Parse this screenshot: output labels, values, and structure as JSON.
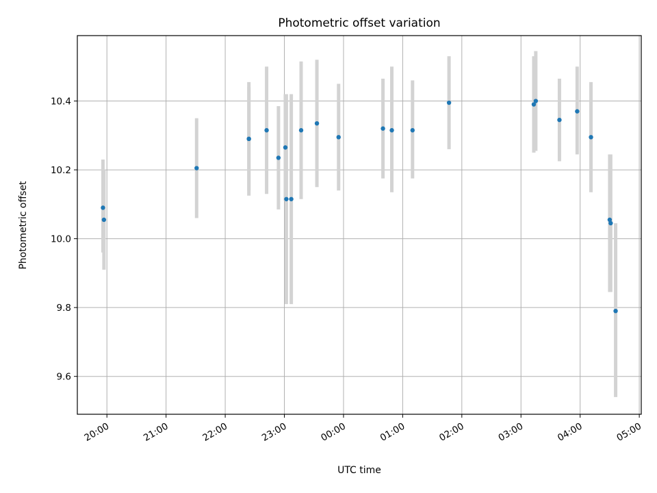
{
  "chart_data": {
    "type": "scatter",
    "title": "Photometric offset variation",
    "xlabel": "UTC time",
    "ylabel": "Photometric offset",
    "x_tick_labels": [
      "20:00",
      "21:00",
      "22:00",
      "23:00",
      "00:00",
      "01:00",
      "02:00",
      "03:00",
      "04:00",
      "05:00"
    ],
    "y_tick_labels": [
      "9.6",
      "9.8",
      "10.0",
      "10.2",
      "10.4"
    ],
    "y_ticks": [
      9.6,
      9.8,
      10.0,
      10.2,
      10.4
    ],
    "xlim": [
      "19:30",
      "05:02"
    ],
    "ylim": [
      9.49,
      10.59
    ],
    "grid": true,
    "colors": {
      "point": "#1f77b4",
      "errorbar": "#d3d3d3",
      "grid": "#b0b0b0"
    },
    "series": [
      {
        "points": [
          {
            "x": "19:56",
            "y": 10.09,
            "lo": 9.96,
            "hi": 10.23
          },
          {
            "x": "19:57",
            "y": 10.055,
            "lo": 9.91,
            "hi": 10.2
          },
          {
            "x": "21:31",
            "y": 10.205,
            "lo": 10.06,
            "hi": 10.35
          },
          {
            "x": "22:24",
            "y": 10.29,
            "lo": 10.14,
            "hi": 10.44
          },
          {
            "x": "22:24",
            "y": 10.29,
            "lo": 10.125,
            "hi": 10.455
          },
          {
            "x": "22:42",
            "y": 10.315,
            "lo": 10.13,
            "hi": 10.5
          },
          {
            "x": "22:54",
            "y": 10.235,
            "lo": 10.085,
            "hi": 10.385
          },
          {
            "x": "23:01",
            "y": 10.265,
            "lo": 10.11,
            "hi": 10.42
          },
          {
            "x": "23:02",
            "y": 10.115,
            "lo": 9.81,
            "hi": 10.42
          },
          {
            "x": "23:07",
            "y": 10.115,
            "lo": 9.81,
            "hi": 10.42
          },
          {
            "x": "23:17",
            "y": 10.315,
            "lo": 10.115,
            "hi": 10.515
          },
          {
            "x": "23:33",
            "y": 10.335,
            "lo": 10.15,
            "hi": 10.52
          },
          {
            "x": "23:55",
            "y": 10.295,
            "lo": 10.14,
            "hi": 10.45
          },
          {
            "x": "00:40",
            "y": 10.32,
            "lo": 10.175,
            "hi": 10.465
          },
          {
            "x": "00:49",
            "y": 10.315,
            "lo": 10.135,
            "hi": 10.5
          },
          {
            "x": "01:10",
            "y": 10.315,
            "lo": 10.175,
            "hi": 10.46
          },
          {
            "x": "01:47",
            "y": 10.395,
            "lo": 10.26,
            "hi": 10.53
          },
          {
            "x": "03:13",
            "y": 10.39,
            "lo": 10.25,
            "hi": 10.53
          },
          {
            "x": "03:15",
            "y": 10.4,
            "lo": 10.255,
            "hi": 10.545
          },
          {
            "x": "03:39",
            "y": 10.345,
            "lo": 10.225,
            "hi": 10.465
          },
          {
            "x": "03:57",
            "y": 10.37,
            "lo": 10.245,
            "hi": 10.5
          },
          {
            "x": "04:11",
            "y": 10.295,
            "lo": 10.135,
            "hi": 10.455
          },
          {
            "x": "04:30",
            "y": 10.055,
            "lo": 9.845,
            "hi": 10.245
          },
          {
            "x": "04:31",
            "y": 10.045,
            "lo": 9.845,
            "hi": 10.245
          },
          {
            "x": "04:36",
            "y": 9.79,
            "lo": 9.54,
            "hi": 10.045
          }
        ]
      }
    ]
  }
}
